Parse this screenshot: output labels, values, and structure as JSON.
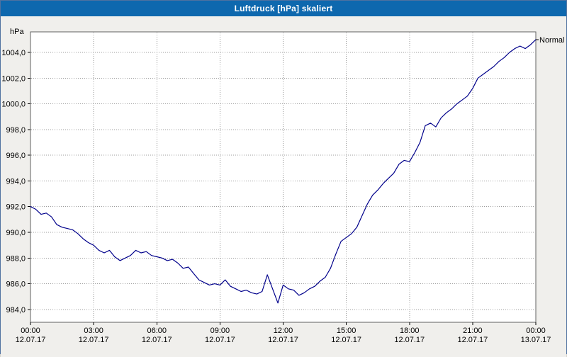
{
  "window": {
    "title": "Luftdruck [hPa] skaliert"
  },
  "colors": {
    "title_bar": "#0e68ae",
    "title_text": "#ffffff",
    "background": "#f0efec",
    "plot_background": "#ffffff",
    "plot_border": "#606060",
    "grid": "#9c9c9c",
    "axis_text": "#000000",
    "series_line": "#00008b"
  },
  "chart_data": {
    "type": "line",
    "title": "Luftdruck [hPa] skaliert",
    "xlabel": "",
    "ylabel": "hPa",
    "xlim": [
      0,
      24
    ],
    "ylim": [
      983.0,
      1005.6
    ],
    "grid": true,
    "grid_style": "dotted",
    "legend_position": "right-end-of-line",
    "y_ticks": [
      {
        "value": 984,
        "label": "984,0"
      },
      {
        "value": 986,
        "label": "986,0"
      },
      {
        "value": 988,
        "label": "988,0"
      },
      {
        "value": 990,
        "label": "990,0"
      },
      {
        "value": 992,
        "label": "992,0"
      },
      {
        "value": 994,
        "label": "994,0"
      },
      {
        "value": 996,
        "label": "996,0"
      },
      {
        "value": 998,
        "label": "998,0"
      },
      {
        "value": 1000,
        "label": "1000,0"
      },
      {
        "value": 1002,
        "label": "1002,0"
      },
      {
        "value": 1004,
        "label": "1004,0"
      }
    ],
    "x_ticks": [
      {
        "hour": 0,
        "time": "00:00",
        "date": "12.07.17"
      },
      {
        "hour": 3,
        "time": "03:00",
        "date": "12.07.17"
      },
      {
        "hour": 6,
        "time": "06:00",
        "date": "12.07.17"
      },
      {
        "hour": 9,
        "time": "09:00",
        "date": "12.07.17"
      },
      {
        "hour": 12,
        "time": "12:00",
        "date": "12.07.17"
      },
      {
        "hour": 15,
        "time": "15:00",
        "date": "12.07.17"
      },
      {
        "hour": 18,
        "time": "18:00",
        "date": "12.07.17"
      },
      {
        "hour": 21,
        "time": "21:00",
        "date": "12.07.17"
      },
      {
        "hour": 24,
        "time": "00:00",
        "date": "13.07.17"
      }
    ],
    "series": [
      {
        "name": "Normal",
        "color": "#00008b",
        "x": [
          0,
          0.25,
          0.5,
          0.75,
          1,
          1.25,
          1.5,
          1.75,
          2,
          2.25,
          2.5,
          2.75,
          3,
          3.25,
          3.5,
          3.75,
          4,
          4.25,
          4.5,
          4.75,
          5,
          5.25,
          5.5,
          5.75,
          6,
          6.25,
          6.5,
          6.75,
          7,
          7.25,
          7.5,
          7.75,
          8,
          8.25,
          8.5,
          8.75,
          9,
          9.25,
          9.5,
          9.75,
          10,
          10.25,
          10.5,
          10.75,
          11,
          11.25,
          11.5,
          11.75,
          12,
          12.25,
          12.5,
          12.75,
          13,
          13.25,
          13.5,
          13.75,
          14,
          14.25,
          14.5,
          14.75,
          15,
          15.25,
          15.5,
          15.75,
          16,
          16.25,
          16.5,
          16.75,
          17,
          17.25,
          17.5,
          17.75,
          18,
          18.25,
          18.5,
          18.75,
          19,
          19.25,
          19.5,
          19.75,
          20,
          20.25,
          20.5,
          20.75,
          21,
          21.25,
          21.5,
          21.75,
          22,
          22.25,
          22.5,
          22.75,
          23,
          23.25,
          23.5,
          23.75,
          24
        ],
        "values": [
          992.0,
          991.8,
          991.4,
          991.5,
          991.2,
          990.6,
          990.4,
          990.3,
          990.2,
          989.9,
          989.5,
          989.2,
          989.0,
          988.6,
          988.4,
          988.6,
          988.1,
          987.8,
          988.0,
          988.2,
          988.6,
          988.4,
          988.5,
          988.2,
          988.1,
          988.0,
          987.8,
          987.9,
          987.6,
          987.2,
          987.3,
          986.8,
          986.3,
          986.1,
          985.9,
          986.0,
          985.9,
          986.3,
          985.8,
          985.6,
          985.4,
          985.5,
          985.3,
          985.2,
          985.4,
          986.7,
          985.6,
          984.5,
          985.9,
          985.6,
          985.5,
          985.1,
          985.3,
          985.6,
          985.8,
          986.2,
          986.5,
          987.2,
          988.3,
          989.3,
          989.6,
          989.9,
          990.4,
          991.3,
          992.2,
          992.9,
          993.3,
          993.8,
          994.2,
          994.6,
          995.3,
          995.6,
          995.5,
          996.2,
          997.0,
          998.3,
          998.5,
          998.2,
          998.9,
          999.3,
          999.6,
          1000.0,
          1000.3,
          1000.6,
          1001.2,
          1002.0,
          1002.3,
          1002.6,
          1002.9,
          1003.3,
          1003.6,
          1004.0,
          1004.3,
          1004.5,
          1004.3,
          1004.6,
          1005.0
        ]
      }
    ]
  }
}
